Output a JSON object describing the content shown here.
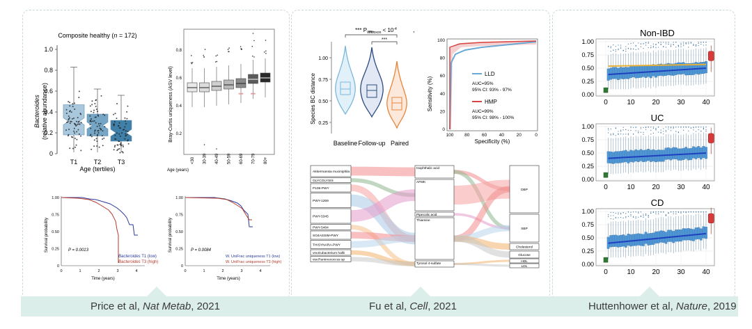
{
  "captions": {
    "price": {
      "authors": "Price et al, ",
      "journal": "Nat Metab",
      "year": ", 2021"
    },
    "fu": {
      "authors": "Fu et al, ",
      "journal": "Cell",
      "year": ", 2021"
    },
    "hutt": {
      "authors": "Huttenhower et al, ",
      "journal": "Nature",
      "year": ", 2019"
    }
  },
  "price_box": {
    "title_pre": "Composite healthy (",
    "title_n": "n",
    "title_post": " = 172)",
    "ylabel_italic": "Bacteroides",
    "ylabel_rest": "(relative abundance)",
    "xlabel": "Age (tertiles)",
    "yticks": [
      "0",
      "0.2",
      "0.4",
      "0.6",
      "0.8",
      "1.0"
    ],
    "xticks": [
      "T1",
      "T2",
      "T3"
    ],
    "colors": [
      "#a9c8dd",
      "#76a6c5",
      "#3f7fa8"
    ]
  },
  "chart_data": [
    {
      "type": "box",
      "title": "Composite healthy (n = 172)",
      "xlabel": "Age (tertiles)",
      "ylabel": "Bacteroides (relative abundance)",
      "categories": [
        "T1",
        "T2",
        "T3"
      ],
      "box_median": [
        0.31,
        0.27,
        0.2
      ],
      "box_q1": [
        0.18,
        0.17,
        0.12
      ],
      "box_q3": [
        0.47,
        0.38,
        0.32
      ],
      "ylim": [
        0,
        1.0
      ]
    },
    {
      "type": "box",
      "ylabel": "Bray-Curtis uniqueness (ASV level)",
      "xlabel": "Age (years)",
      "categories": [
        "<30",
        "30-39",
        "40-49",
        "50-59",
        "60-69",
        "70-79",
        "80+"
      ],
      "box_median": [
        0.53,
        0.53,
        0.54,
        0.55,
        0.56,
        0.59,
        0.6
      ],
      "ylim": [
        0.05,
        0.95
      ],
      "annotations": [
        "***",
        "***"
      ]
    },
    {
      "type": "line",
      "title": "Survival probability",
      "xlabel": "Time (years)",
      "pvalue": "P = 0.0013",
      "series": [
        "Bacteroides T1 (low)",
        "Bacteroides T3 (high)"
      ]
    },
    {
      "type": "line",
      "xlabel": "Time (years)",
      "pvalue": "P = 0.0084",
      "series": [
        "W. UniFrac uniqueness T1 (low)",
        "W. UniFrac uniqueness T3 (high)"
      ]
    },
    {
      "type": "violin",
      "ylabel": "Species BC distance",
      "categories": [
        "Baseline",
        "Follow-up",
        "Paired"
      ],
      "medians": [
        0.6,
        0.58,
        0.44
      ],
      "ylim": [
        0.2,
        1.1
      ]
    },
    {
      "type": "line",
      "xlabel": "Specificity (%)",
      "ylabel": "Sensitivity (%)",
      "series": [
        {
          "name": "LLD",
          "auc": "AUC=95%",
          "ci": "95% CI: 93% - 97%"
        },
        {
          "name": "HMP",
          "auc": "AUC=99%",
          "ci": "95% CI: 98% - 100%"
        }
      ]
    },
    {
      "type": "box",
      "title": "Non-IBD",
      "x": [
        0,
        10,
        20,
        30,
        40
      ],
      "trend_start": 0.38,
      "trend_end": 0.5,
      "ylim": [
        0,
        1.0
      ]
    },
    {
      "type": "box",
      "title": "UC",
      "trend_start": 0.4,
      "trend_end": 0.5,
      "ylim": [
        0,
        1.0
      ]
    },
    {
      "type": "box",
      "title": "CD",
      "trend_start": 0.4,
      "trend_end": 0.58,
      "ylim": [
        0,
        1.0
      ]
    }
  ],
  "bc_box": {
    "ylabel": "Bray-Curtis uniqueness (ASV level)",
    "xlabel_title": "Age (years)",
    "yticks": [
      "0.2",
      "0.4",
      "0.6",
      "0.8"
    ],
    "xticks": [
      "<30",
      "30-39",
      "40-49",
      "50-59",
      "60-69",
      "70-79",
      "80+"
    ],
    "star": "***"
  },
  "surv1": {
    "ylabel": "Survival probability",
    "xlabel": "Time (years)",
    "yticks": [
      "0",
      "0.25",
      "0.50",
      "0.75",
      "1.00"
    ],
    "xticks": [
      "0",
      "1",
      "2",
      "3",
      "4"
    ],
    "pvalue": "P = 0.0013",
    "legend1_italic": "Bacteroides",
    "legend1_rest": " T1 (low)",
    "legend2_italic": "Bacteroides",
    "legend2_rest": " T3 (high)"
  },
  "surv2": {
    "ylabel": "Survival probability",
    "xlabel": "Time (years)",
    "yticks": [
      "0",
      "0.25",
      "0.50",
      "0.75",
      "1.00"
    ],
    "xticks": [
      "0",
      "1",
      "2",
      "3",
      "4"
    ],
    "pvalue": "P = 0.0084",
    "legend1": "W. UniFrac uniqueness T1 (low)",
    "legend2": "W. UniFrac uniqueness T3 (high)"
  },
  "violin": {
    "sig_title": "*** P",
    "sig_sub": "Wilcoxon",
    "sig_post": " < 10",
    "sig_exp": "-4",
    "ylabel": "Species BC distance",
    "yticks": [
      "0.25",
      "0.50",
      "0.75",
      "1.00"
    ],
    "xlabels": [
      "Baseline",
      "Follow-up",
      "Paired"
    ],
    "stars": "***",
    "comma": ","
  },
  "roc": {
    "ylabel": "Sensitivity (%)",
    "xlabel": "Specificity (%)",
    "yticks": [
      "0",
      "20",
      "40",
      "60",
      "80",
      "100"
    ],
    "xticks": [
      "100",
      "80",
      "60",
      "40",
      "20",
      "0"
    ],
    "lld": "LLD",
    "lld_auc": "AUC=95%",
    "lld_ci": "95% CI: 93% - 97%",
    "hmp": "HMP",
    "hmp_auc": "AUC=99%",
    "hmp_ci": "95% CI: 98% - 100%"
  },
  "sankey": {
    "left": [
      "Akkermansia muciniphila",
      "GLYCOLYSIS",
      "P108-PWY",
      "PWY-1269",
      "PWY-5345",
      "PWY-5484",
      "SO4ASSIM-PWY",
      "THISYNARA-PWY",
      "vsv.Eubacterium hallii",
      "vsv.Ruminococcus sp"
    ],
    "mid": [
      "Isophthalic acid",
      "AFMK",
      "Pipecolic acid",
      "Thiamine",
      "Tyrosol 4-sulfate"
    ],
    "right": [
      "DBP",
      "SBP",
      "Cholesterol",
      "Glucose",
      "HDL",
      "LDL"
    ]
  },
  "hutt": {
    "panels": [
      "Non-IBD",
      "UC",
      "CD"
    ],
    "yticks": [
      "0.00",
      "0.25",
      "0.50",
      "0.75",
      "1.00"
    ],
    "xticks": [
      "0",
      "10",
      "20",
      "30",
      "40"
    ]
  }
}
